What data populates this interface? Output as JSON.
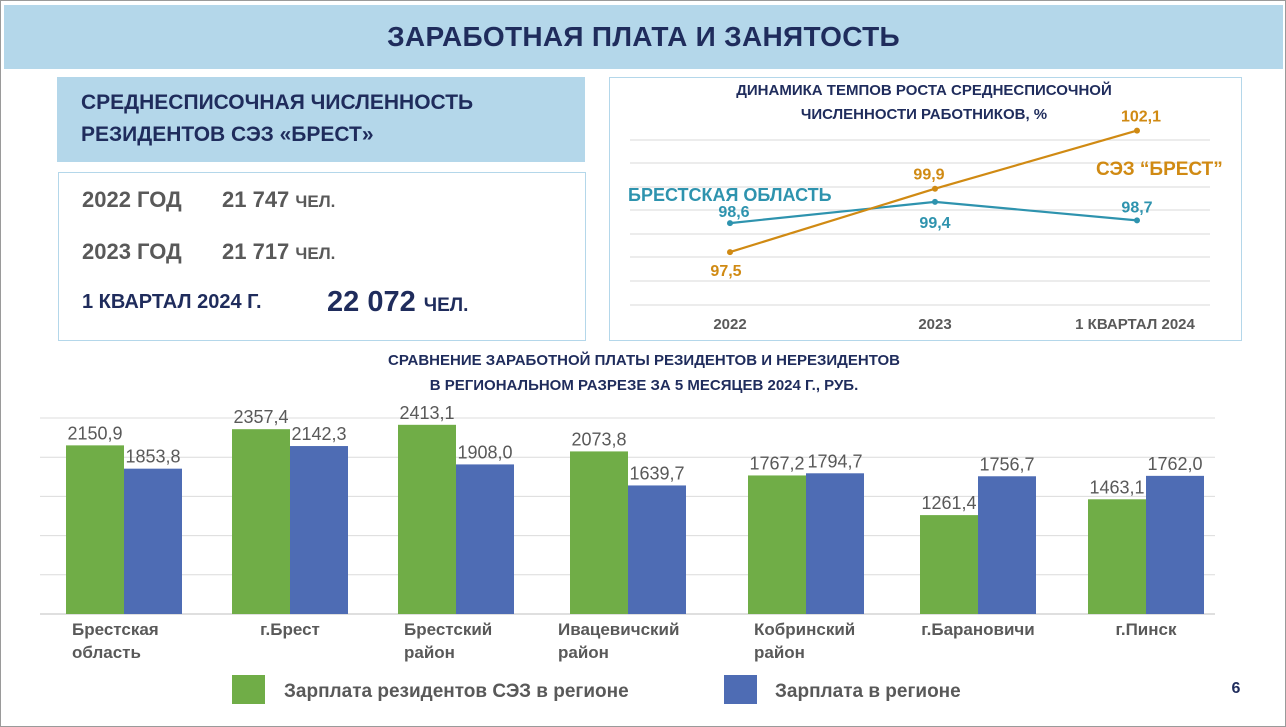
{
  "title": "ЗАРАБОТНАЯ ПЛАТА И ЗАНЯТОСТЬ",
  "headcount": {
    "heading_line1": "СРЕДНЕСПИСОЧНАЯ ЧИСЛЕННОСТЬ",
    "heading_line2": "РЕЗИДЕНТОВ СЭЗ «БРЕСТ»",
    "rows": [
      {
        "period": "2022 ГОД",
        "value": "21 747",
        "unit": "ЧЕЛ."
      },
      {
        "period": "2023 ГОД",
        "value": "21 717",
        "unit": "ЧЕЛ."
      },
      {
        "period": "1 КВАРТАЛ 2024 Г.",
        "value": "22 072",
        "unit": "ЧЕЛ."
      }
    ]
  },
  "page_number": "6",
  "colors": {
    "title_bg": "#b4d7ea",
    "navy": "#1f2c5c",
    "green": "#70ad47",
    "blue": "#4e6cb4",
    "teal": "#2e93ae",
    "orange": "#d08a13",
    "gray": "#595959"
  },
  "chart_data": [
    {
      "type": "line",
      "title_line1": "ДИНАМИКА ТЕМПОВ РОСТА СРЕДНЕСПИСОЧНОЙ",
      "title_line2": "ЧИСЛЕННОСТИ РАБОТНИКОВ, %",
      "categories": [
        "2022",
        "2023",
        "1 КВАРТАЛ 2024"
      ],
      "series": [
        {
          "name": "БРЕСТСКАЯ ОБЛАСТЬ",
          "values": [
            98.6,
            99.4,
            98.7
          ],
          "labels": [
            "98,6",
            "99,4",
            "98,7"
          ]
        },
        {
          "name": "СЭЗ “БРЕСТ”",
          "values": [
            97.5,
            99.9,
            102.1
          ],
          "labels": [
            "97,5",
            "99,9",
            "102,1"
          ]
        }
      ],
      "ylim": [
        95.5,
        102.5
      ],
      "grid": true
    },
    {
      "type": "bar",
      "title_line1": "СРАВНЕНИЕ ЗАРАБОТНОЙ ПЛАТЫ РЕЗИДЕНТОВ И НЕРЕЗИДЕНТОВ",
      "title_line2": "В РЕГИОНАЛЬНОМ РАЗРЕЗЕ ЗА 5 МЕСЯЦЕВ 2024 Г., РУБ.",
      "categories": [
        [
          "Брестская",
          "область"
        ],
        [
          "г.Брест"
        ],
        [
          "Брестский",
          "район"
        ],
        [
          "Ивацевичский",
          "район"
        ],
        [
          "Кобринский",
          "район"
        ],
        [
          "г.Барановичи"
        ],
        [
          "г.Пинск"
        ]
      ],
      "series": [
        {
          "name": "Зарплата резидентов СЭЗ в регионе",
          "values": [
            2150.9,
            2357.4,
            2413.1,
            2073.8,
            1767.2,
            1261.4,
            1463.1
          ],
          "labels": [
            "2150,9",
            "2357,4",
            "2413,1",
            "2073,8",
            "1767,2",
            "1261,4",
            "1463,1"
          ]
        },
        {
          "name": "Зарплата в регионе",
          "values": [
            1853.8,
            2142.3,
            1908.0,
            1639.7,
            1794.7,
            1756.7,
            1762.0
          ],
          "labels": [
            "1853,8",
            "2142,3",
            "1908,0",
            "1639,7",
            "1794,7",
            "1756,7",
            "1762,0"
          ]
        }
      ],
      "ylim": [
        0,
        2500
      ],
      "grid": true,
      "legend": "bottom"
    }
  ]
}
